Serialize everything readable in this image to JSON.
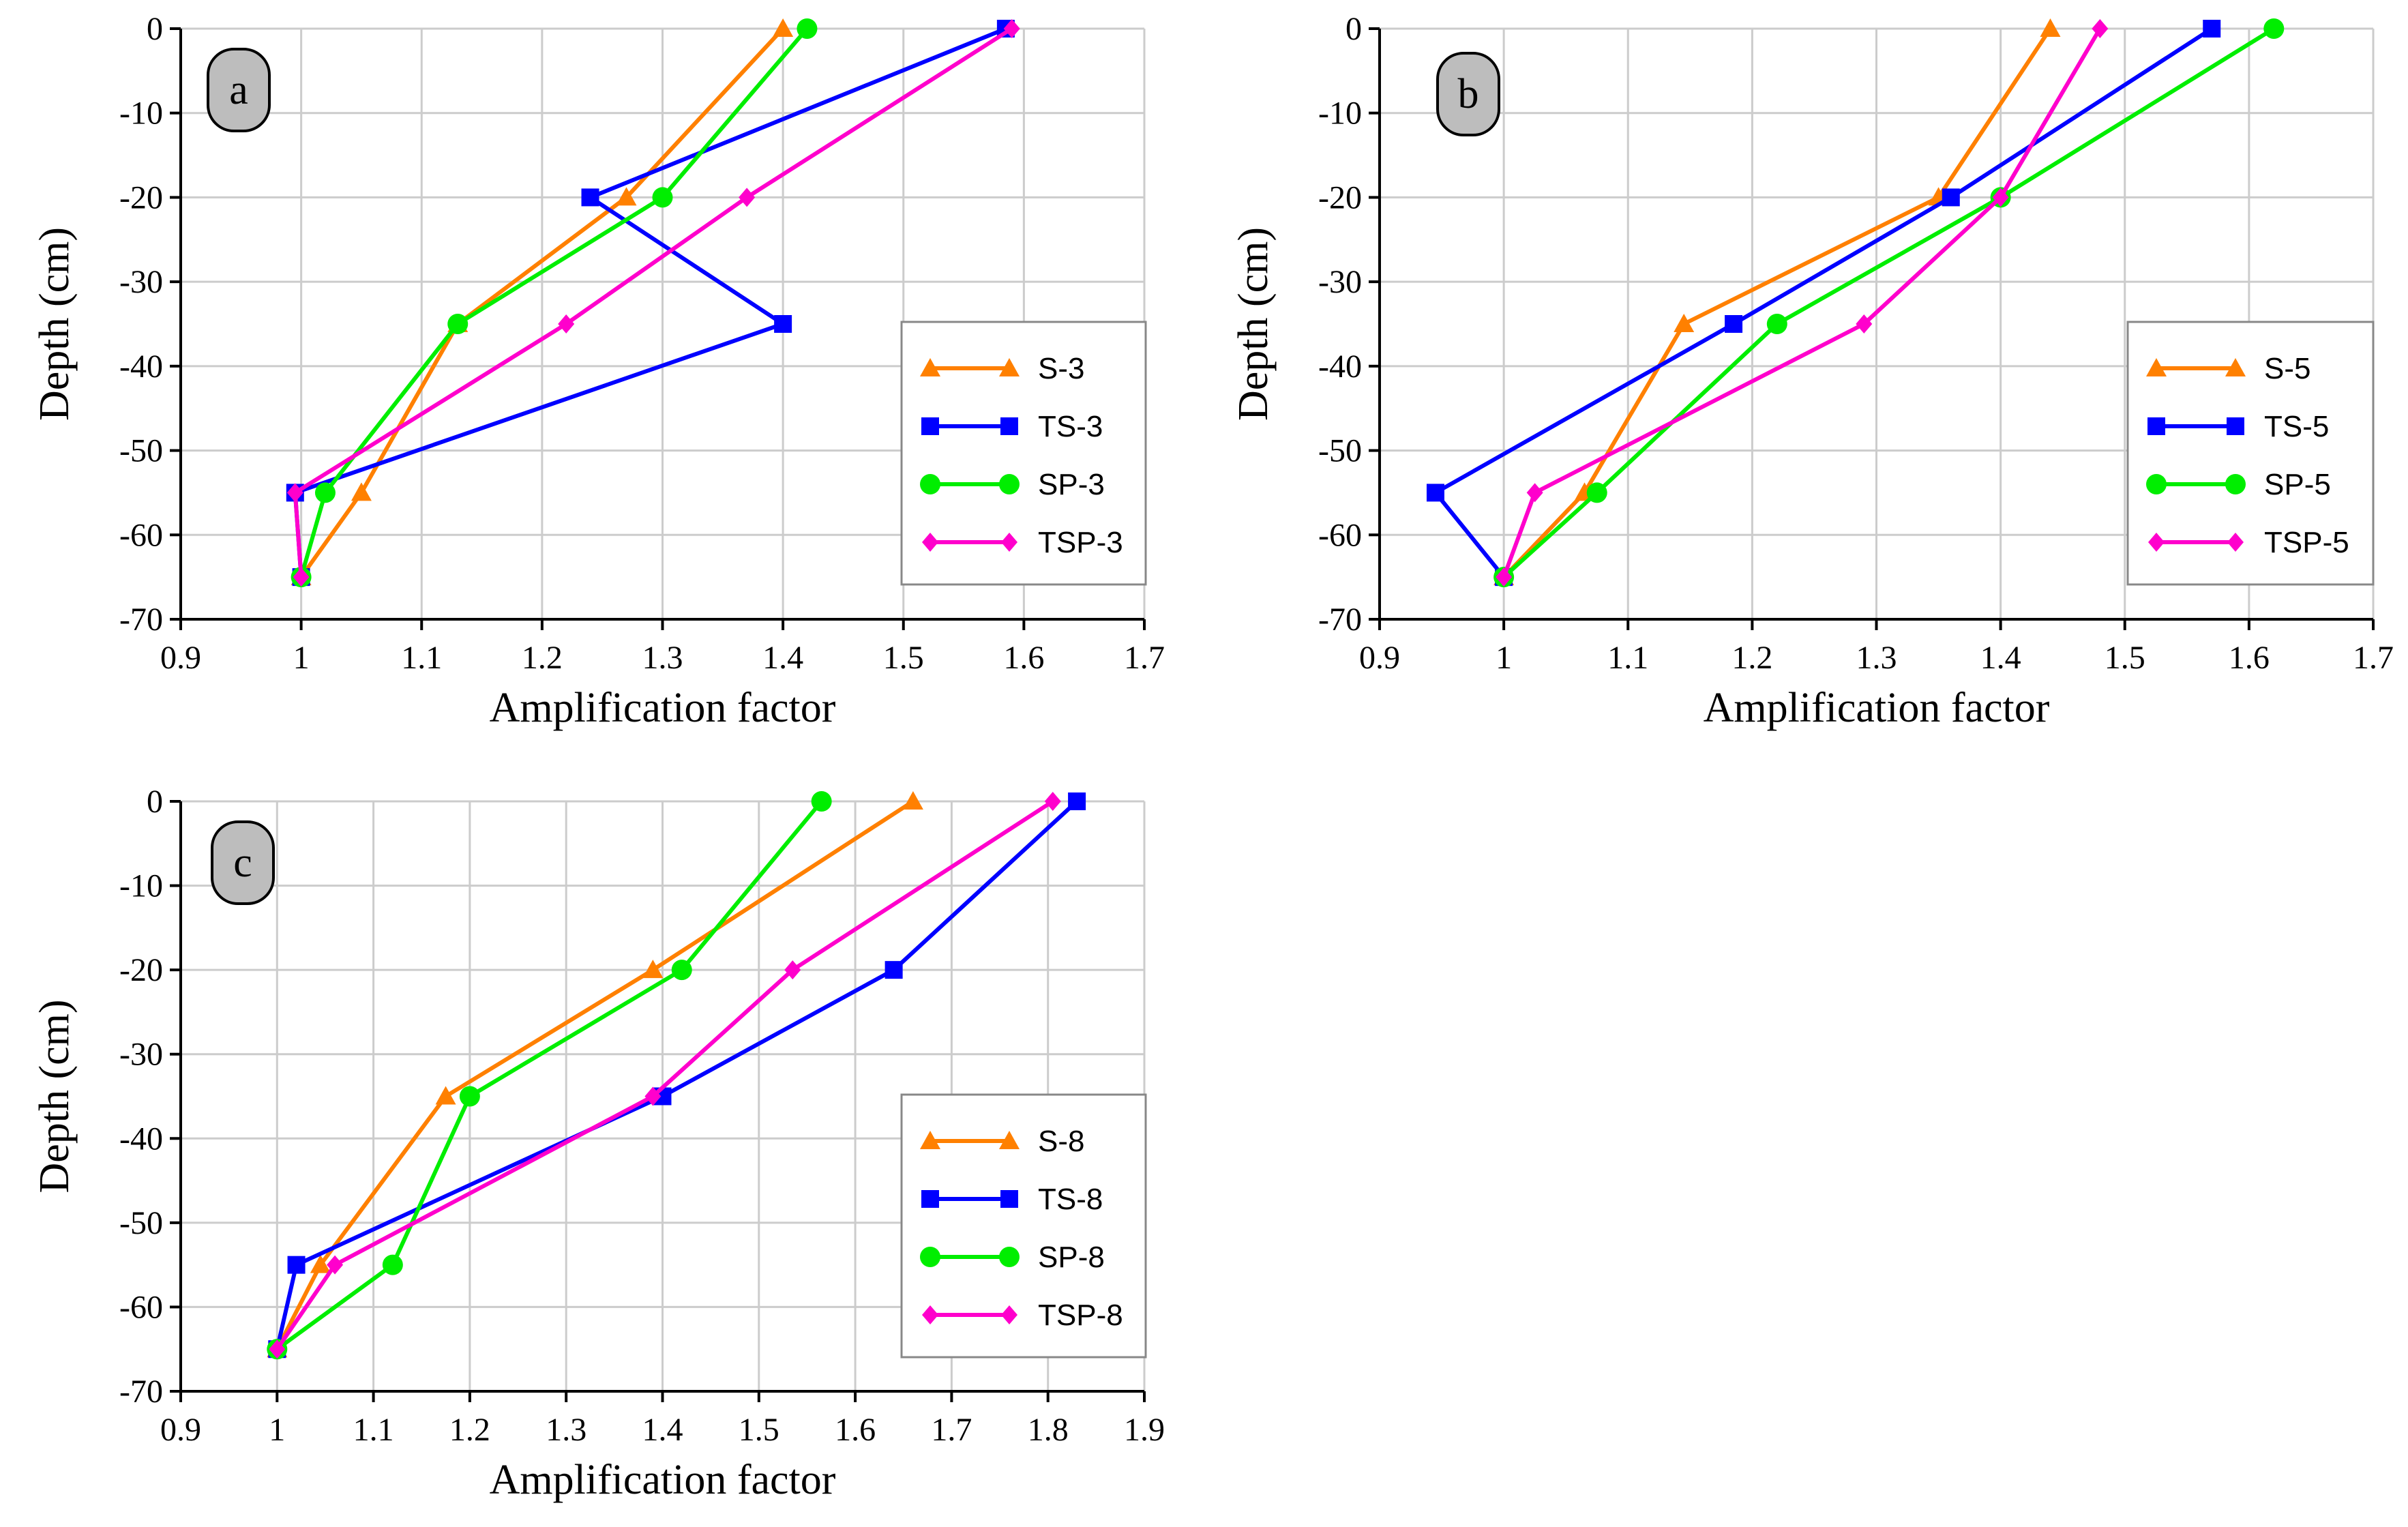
{
  "chart_data": [
    {
      "type": "line",
      "panel_label": "a",
      "xlabel": "Amplification factor",
      "ylabel": "Depth (cm)",
      "xlim": [
        0.9,
        1.7
      ],
      "ylim": [
        -70,
        0
      ],
      "xticks": [
        0.9,
        1.0,
        1.1,
        1.2,
        1.3,
        1.4,
        1.5,
        1.6,
        1.7
      ],
      "xtick_labels": [
        "0.9",
        "1",
        "1.1",
        "1.2",
        "1.3",
        "1.4",
        "1.5",
        "1.6",
        "1.7"
      ],
      "yticks": [
        0,
        -10,
        -20,
        -30,
        -40,
        -50,
        -60,
        -70
      ],
      "ytick_labels": [
        "0",
        "-10",
        "-20",
        "-30",
        "-40",
        "-50",
        "-60",
        "-70"
      ],
      "grid": true,
      "legend_position": "right",
      "series": [
        {
          "name": "S-3",
          "color": "#ff8000",
          "marker": "triangle",
          "points": [
            [
              1.4,
              0
            ],
            [
              1.27,
              -20
            ],
            [
              1.13,
              -35
            ],
            [
              1.05,
              -55
            ],
            [
              1.0,
              -65
            ]
          ]
        },
        {
          "name": "TS-3",
          "color": "#0000ff",
          "marker": "square",
          "points": [
            [
              1.585,
              0
            ],
            [
              1.24,
              -20
            ],
            [
              1.4,
              -35
            ],
            [
              0.995,
              -55
            ],
            [
              1.0,
              -65
            ]
          ]
        },
        {
          "name": "SP-3",
          "color": "#00ee00",
          "marker": "circle",
          "points": [
            [
              1.42,
              0
            ],
            [
              1.3,
              -20
            ],
            [
              1.13,
              -35
            ],
            [
              1.02,
              -55
            ],
            [
              1.0,
              -65
            ]
          ]
        },
        {
          "name": "TSP-3",
          "color": "#ff00cc",
          "marker": "diamond",
          "points": [
            [
              1.59,
              0
            ],
            [
              1.37,
              -20
            ],
            [
              1.22,
              -35
            ],
            [
              0.995,
              -55
            ],
            [
              1.0,
              -65
            ]
          ]
        }
      ]
    },
    {
      "type": "line",
      "panel_label": "b",
      "xlabel": "Amplification factor",
      "ylabel": "Depth (cm)",
      "xlim": [
        0.9,
        1.7
      ],
      "ylim": [
        -70,
        0
      ],
      "xticks": [
        0.9,
        1.0,
        1.1,
        1.2,
        1.3,
        1.4,
        1.5,
        1.6,
        1.7
      ],
      "xtick_labels": [
        "0.9",
        "1",
        "1.1",
        "1.2",
        "1.3",
        "1.4",
        "1.5",
        "1.6",
        "1.7"
      ],
      "yticks": [
        0,
        -10,
        -20,
        -30,
        -40,
        -50,
        -60,
        -70
      ],
      "ytick_labels": [
        "0",
        "-10",
        "-20",
        "-30",
        "-40",
        "-50",
        "-60",
        "-70"
      ],
      "grid": true,
      "legend_position": "right",
      "series": [
        {
          "name": "S-5",
          "color": "#ff8000",
          "marker": "triangle",
          "points": [
            [
              1.44,
              0
            ],
            [
              1.35,
              -20
            ],
            [
              1.145,
              -35
            ],
            [
              1.065,
              -55
            ],
            [
              1.0,
              -65
            ]
          ]
        },
        {
          "name": "TS-5",
          "color": "#0000ff",
          "marker": "square",
          "points": [
            [
              1.57,
              0
            ],
            [
              1.36,
              -20
            ],
            [
              1.185,
              -35
            ],
            [
              0.945,
              -55
            ],
            [
              1.0,
              -65
            ]
          ]
        },
        {
          "name": "SP-5",
          "color": "#00ee00",
          "marker": "circle",
          "points": [
            [
              1.62,
              0
            ],
            [
              1.4,
              -20
            ],
            [
              1.22,
              -35
            ],
            [
              1.075,
              -55
            ],
            [
              1.0,
              -65
            ]
          ]
        },
        {
          "name": "TSP-5",
          "color": "#ff00cc",
          "marker": "diamond",
          "points": [
            [
              1.48,
              0
            ],
            [
              1.4,
              -20
            ],
            [
              1.29,
              -35
            ],
            [
              1.025,
              -55
            ],
            [
              1.0,
              -65
            ]
          ]
        }
      ]
    },
    {
      "type": "line",
      "panel_label": "c",
      "xlabel": "Amplification factor",
      "ylabel": "Depth (cm)",
      "xlim": [
        0.9,
        1.9
      ],
      "ylim": [
        -70,
        0
      ],
      "xticks": [
        0.9,
        1.0,
        1.1,
        1.2,
        1.3,
        1.4,
        1.5,
        1.6,
        1.7,
        1.8,
        1.9
      ],
      "xtick_labels": [
        "0.9",
        "1",
        "1.1",
        "1.2",
        "1.3",
        "1.4",
        "1.5",
        "1.6",
        "1.7",
        "1.8",
        "1.9"
      ],
      "yticks": [
        0,
        -10,
        -20,
        -30,
        -40,
        -50,
        -60,
        -70
      ],
      "ytick_labels": [
        "0",
        "-10",
        "-20",
        "-30",
        "-40",
        "-50",
        "-60",
        "-70"
      ],
      "grid": true,
      "legend_position": "right",
      "series": [
        {
          "name": "S-8",
          "color": "#ff8000",
          "marker": "triangle",
          "points": [
            [
              1.66,
              0
            ],
            [
              1.39,
              -20
            ],
            [
              1.175,
              -35
            ],
            [
              1.045,
              -55
            ],
            [
              1.0,
              -65
            ]
          ]
        },
        {
          "name": "TS-8",
          "color": "#0000ff",
          "marker": "square",
          "points": [
            [
              1.83,
              0
            ],
            [
              1.64,
              -20
            ],
            [
              1.4,
              -35
            ],
            [
              1.02,
              -55
            ],
            [
              1.0,
              -65
            ]
          ]
        },
        {
          "name": "SP-8",
          "color": "#00ee00",
          "marker": "circle",
          "points": [
            [
              1.565,
              0
            ],
            [
              1.42,
              -20
            ],
            [
              1.2,
              -35
            ],
            [
              1.12,
              -55
            ],
            [
              1.0,
              -65
            ]
          ]
        },
        {
          "name": "TSP-8",
          "color": "#ff00cc",
          "marker": "diamond",
          "points": [
            [
              1.805,
              0
            ],
            [
              1.535,
              -20
            ],
            [
              1.39,
              -35
            ],
            [
              1.06,
              -55
            ],
            [
              1.0,
              -65
            ]
          ]
        }
      ]
    }
  ]
}
